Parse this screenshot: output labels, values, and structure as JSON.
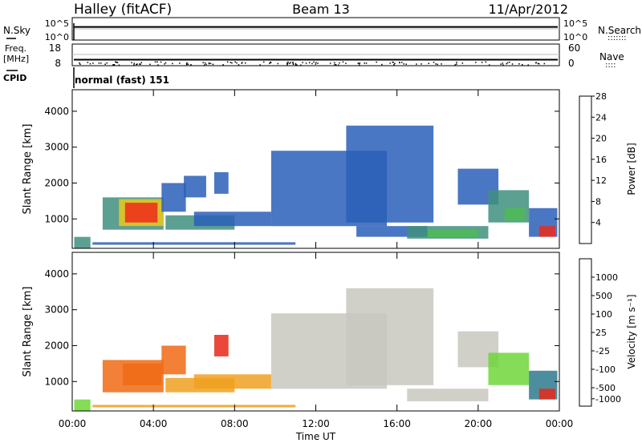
{
  "header": {
    "title": "Halley (fitACF)",
    "beam": "Beam 13",
    "date": "11/Apr/2012"
  },
  "strip_panels": {
    "nsky": {
      "label": "N.Sky",
      "left_ticks": [
        "10^5",
        "10^0"
      ],
      "right_ticks": [
        "10^5",
        "10^0"
      ],
      "right_label": "N.Search",
      "level_log10": 4.8
    },
    "freq": {
      "label_lines": [
        "Freq.",
        "[MHz]"
      ],
      "left_ticks": [
        "18",
        "8"
      ],
      "right_ticks": [
        "60",
        "0"
      ],
      "right_label": "Nave",
      "level_mhz": 11
    },
    "cpid": {
      "label": "CPID",
      "text": "normal (fast) 151"
    }
  },
  "chart_data": [
    {
      "type": "heatmap",
      "name": "power",
      "ylabel": "Slant Range [km]",
      "xlabel": "",
      "xlim_hours": [
        0,
        24
      ],
      "ylim_km": [
        180,
        4600
      ],
      "y_ticks": [
        1000,
        2000,
        3000,
        4000
      ],
      "colorbar": {
        "label": "Power [dB]",
        "ticks": [
          "4",
          "8",
          "12",
          "16",
          "20",
          "24",
          "28"
        ],
        "colors": [
          "#1c2ee0",
          "#2a5fb8",
          "#3f8f7f",
          "#4dbb52",
          "#e8c91c",
          "#f58a18",
          "#ee2a1a"
        ]
      },
      "regions": [
        {
          "t0": 0.1,
          "t1": 0.9,
          "r0": 180,
          "r1": 500,
          "level": 2
        },
        {
          "t0": 1.0,
          "t1": 11.0,
          "r0": 280,
          "r1": 350,
          "level": 1
        },
        {
          "t0": 1.5,
          "t1": 4.5,
          "r0": 700,
          "r1": 1600,
          "level": 2
        },
        {
          "t0": 2.3,
          "t1": 4.5,
          "r0": 800,
          "r1": 1550,
          "level": 4
        },
        {
          "t0": 2.6,
          "t1": 4.2,
          "r0": 900,
          "r1": 1450,
          "level": 6
        },
        {
          "t0": 4.4,
          "t1": 5.6,
          "r0": 1200,
          "r1": 2000,
          "level": 1
        },
        {
          "t0": 5.5,
          "t1": 6.6,
          "r0": 1600,
          "r1": 2200,
          "level": 1
        },
        {
          "t0": 7.0,
          "t1": 7.7,
          "r0": 1700,
          "r1": 2300,
          "level": 1
        },
        {
          "t0": 4.6,
          "t1": 8.0,
          "r0": 700,
          "r1": 1100,
          "level": 2
        },
        {
          "t0": 6.0,
          "t1": 9.8,
          "r0": 800,
          "r1": 1200,
          "level": 1
        },
        {
          "t0": 9.8,
          "t1": 15.5,
          "r0": 800,
          "r1": 2900,
          "level": 1
        },
        {
          "t0": 13.5,
          "t1": 17.8,
          "r0": 900,
          "r1": 3600,
          "level": 1
        },
        {
          "t0": 14.0,
          "t1": 17.5,
          "r0": 500,
          "r1": 800,
          "level": 1
        },
        {
          "t0": 16.5,
          "t1": 20.5,
          "r0": 450,
          "r1": 800,
          "level": 2
        },
        {
          "t0": 17.5,
          "t1": 20.0,
          "r0": 500,
          "r1": 700,
          "level": 3
        },
        {
          "t0": 19.0,
          "t1": 21.0,
          "r0": 1400,
          "r1": 2400,
          "level": 1
        },
        {
          "t0": 20.5,
          "t1": 22.5,
          "r0": 900,
          "r1": 1800,
          "level": 2
        },
        {
          "t0": 21.3,
          "t1": 22.3,
          "r0": 950,
          "r1": 1300,
          "level": 3
        },
        {
          "t0": 22.5,
          "t1": 23.9,
          "r0": 500,
          "r1": 1300,
          "level": 1
        },
        {
          "t0": 23.0,
          "t1": 23.8,
          "r0": 500,
          "r1": 800,
          "level": 6
        }
      ]
    },
    {
      "type": "heatmap",
      "name": "velocity",
      "ylabel": "Slant Range [km]",
      "xlabel": "Time UT",
      "xlim_hours": [
        0,
        24
      ],
      "ylim_km": [
        180,
        4600
      ],
      "y_ticks": [
        1000,
        2000,
        3000,
        4000
      ],
      "x_ticks": [
        "00:00",
        "04:00",
        "08:00",
        "12:00",
        "16:00",
        "20:00",
        "00:00"
      ],
      "colorbar": {
        "label": "Velocity [m s⁻¹]",
        "ticks": [
          "1000",
          "500",
          "100",
          "25",
          "-25",
          "-100",
          "-500",
          "-1000"
        ],
        "colors": [
          "#1c3ec8",
          "#2d7a8c",
          "#3fa84e",
          "#6fd63a",
          "#c8c8c0",
          "#f0a020",
          "#f06a14",
          "#e8281a"
        ]
      },
      "regions": [
        {
          "t0": 0.1,
          "t1": 0.9,
          "r0": 180,
          "r1": 500,
          "level": 3
        },
        {
          "t0": 1.0,
          "t1": 11.0,
          "r0": 280,
          "r1": 350,
          "level": 5
        },
        {
          "t0": 1.5,
          "t1": 4.5,
          "r0": 700,
          "r1": 1600,
          "level": 6
        },
        {
          "t0": 2.5,
          "t1": 4.4,
          "r0": 900,
          "r1": 1500,
          "level": 6
        },
        {
          "t0": 4.4,
          "t1": 5.6,
          "r0": 1200,
          "r1": 2000,
          "level": 6
        },
        {
          "t0": 7.0,
          "t1": 7.7,
          "r0": 1700,
          "r1": 2300,
          "level": 7
        },
        {
          "t0": 4.6,
          "t1": 8.0,
          "r0": 700,
          "r1": 1100,
          "level": 5
        },
        {
          "t0": 6.0,
          "t1": 9.8,
          "r0": 800,
          "r1": 1200,
          "level": 5
        },
        {
          "t0": 9.8,
          "t1": 15.5,
          "r0": 800,
          "r1": 2900,
          "level": 4
        },
        {
          "t0": 13.5,
          "t1": 17.8,
          "r0": 900,
          "r1": 3600,
          "level": 4
        },
        {
          "t0": 16.5,
          "t1": 20.5,
          "r0": 450,
          "r1": 800,
          "level": 4
        },
        {
          "t0": 19.0,
          "t1": 21.0,
          "r0": 1400,
          "r1": 2400,
          "level": 4
        },
        {
          "t0": 20.5,
          "t1": 22.5,
          "r0": 900,
          "r1": 1800,
          "level": 3
        },
        {
          "t0": 22.5,
          "t1": 23.9,
          "r0": 500,
          "r1": 1300,
          "level": 1
        },
        {
          "t0": 23.0,
          "t1": 23.8,
          "r0": 500,
          "r1": 800,
          "level": 7
        }
      ]
    }
  ]
}
